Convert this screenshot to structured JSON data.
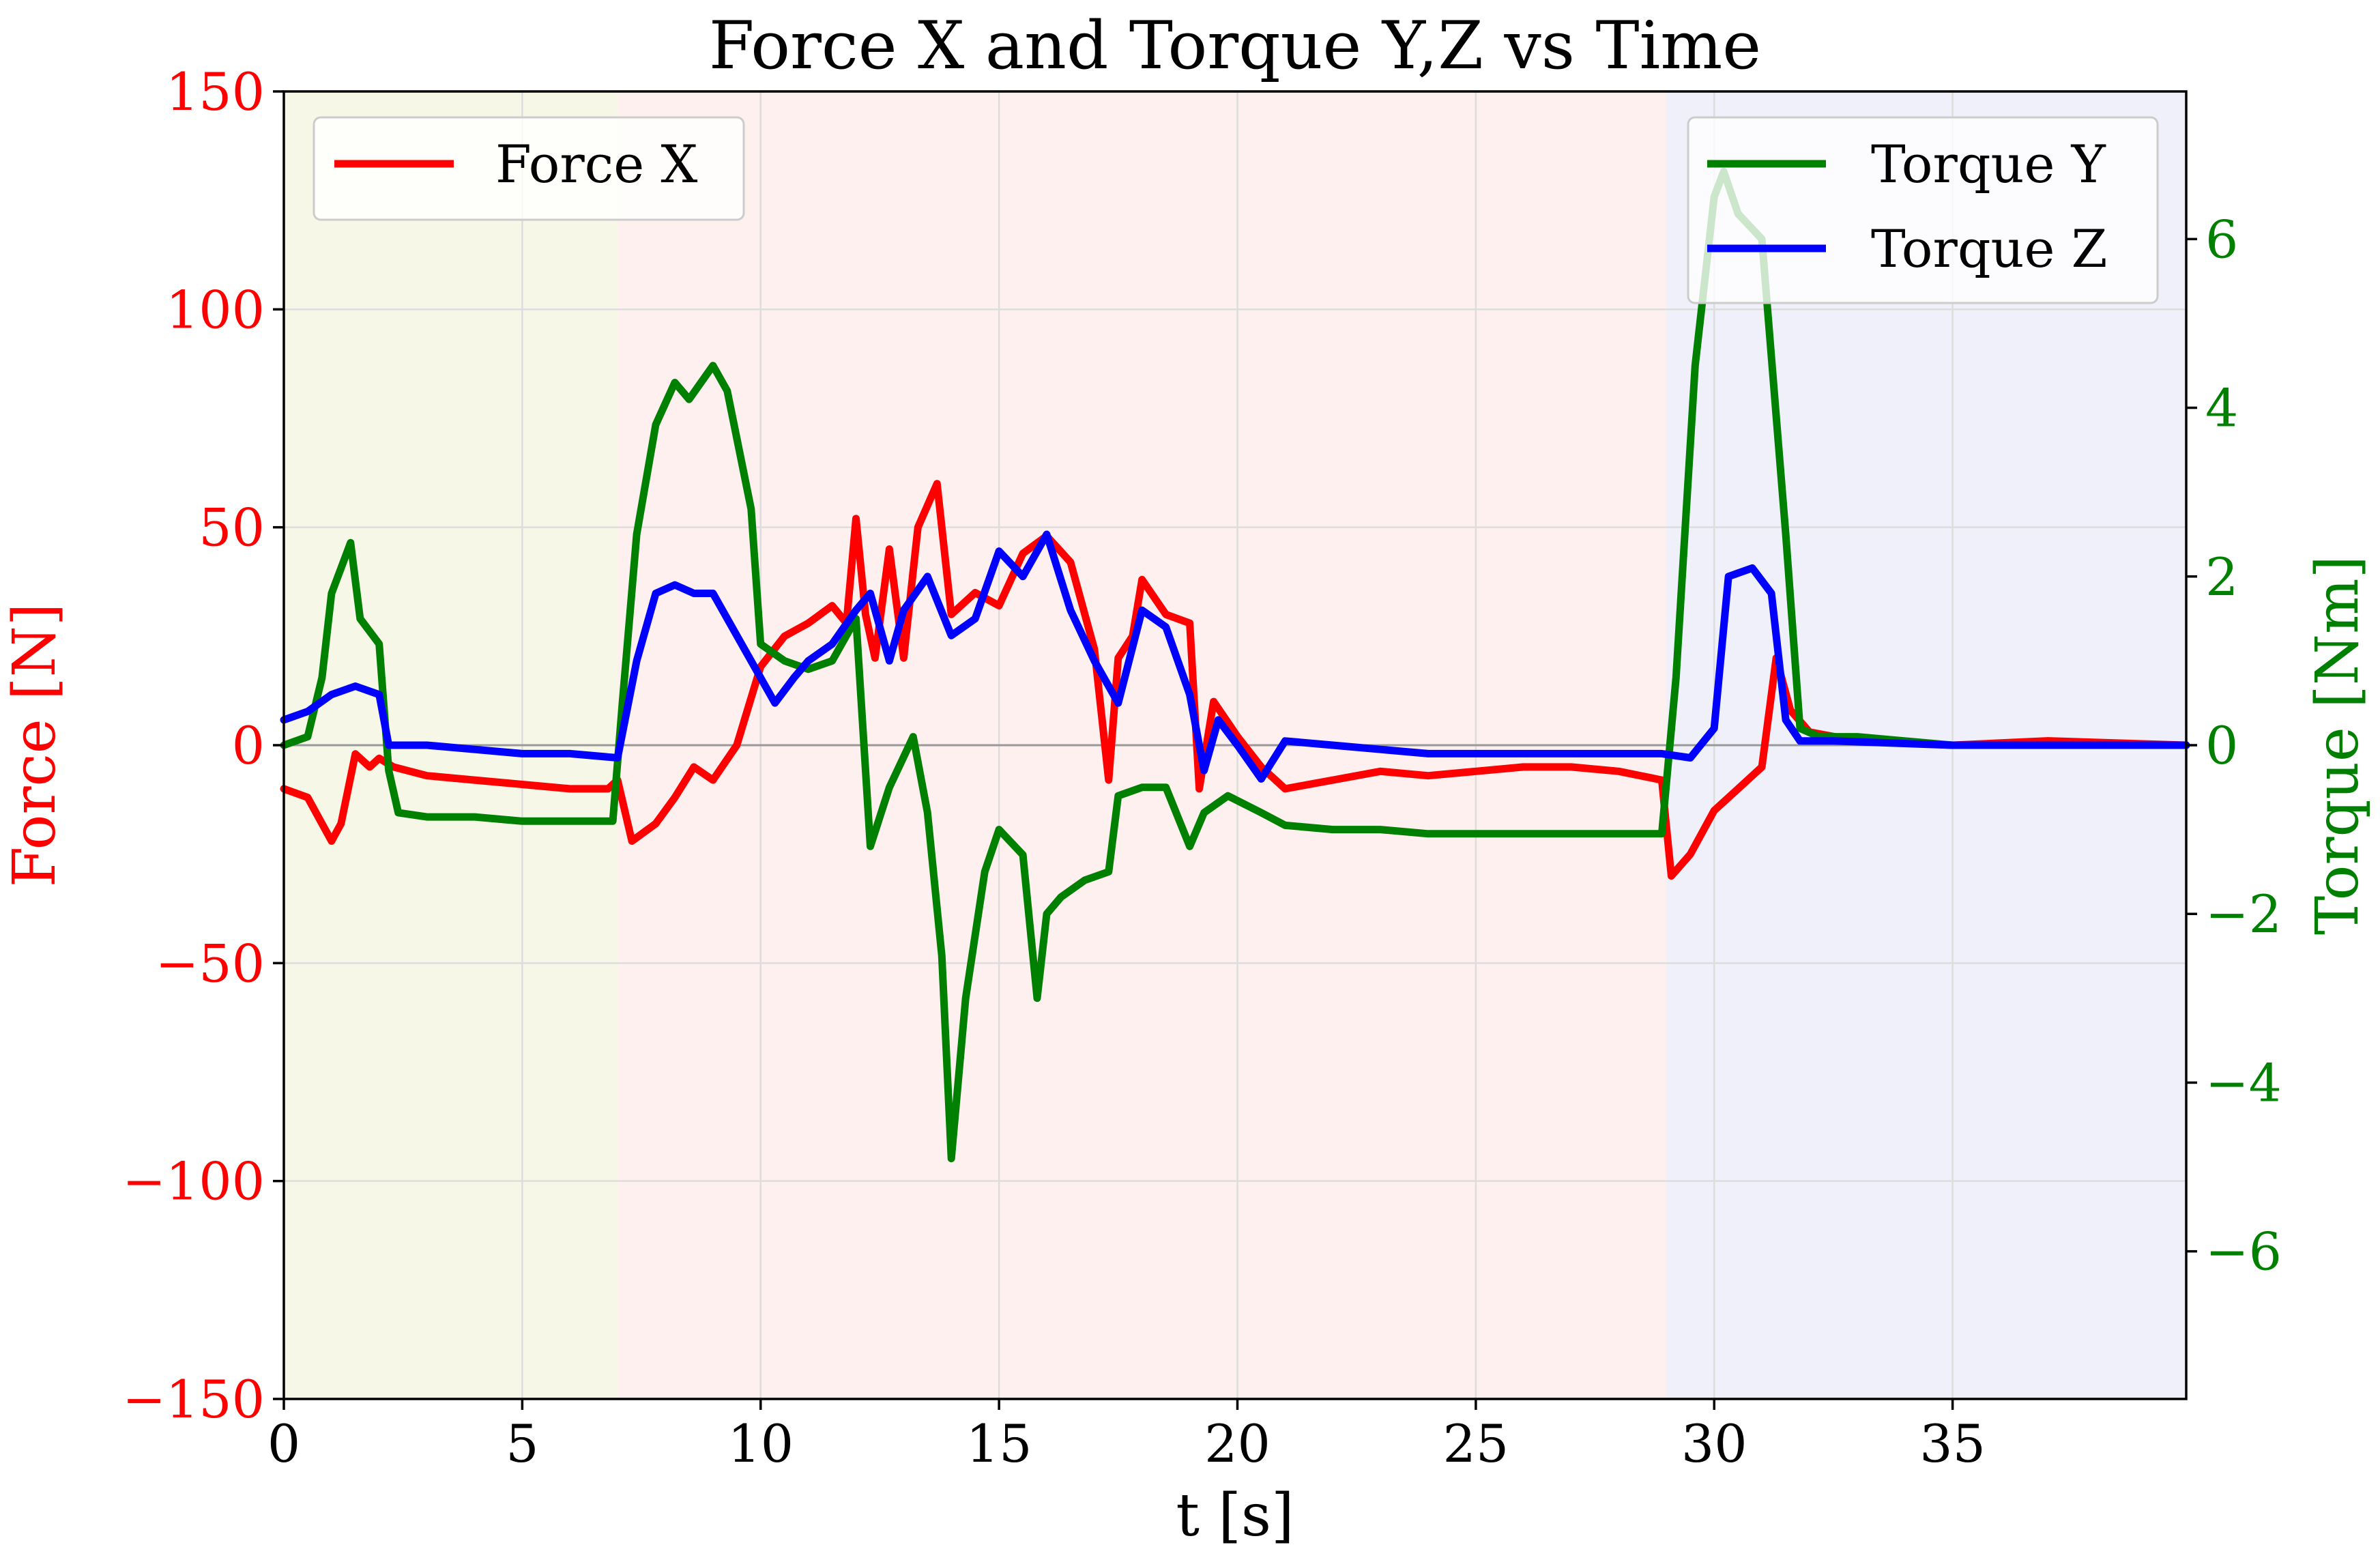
{
  "chart_data": {
    "type": "line",
    "title": "Force X and Torque Y,Z vs Time",
    "xlabel": "t [s]",
    "ylabel": "Force [N]",
    "y2label": "Torque [Nm]",
    "xlim": [
      0,
      39.9
    ],
    "ylim": [
      -150,
      150
    ],
    "y2lim": [
      -7.75,
      7.75
    ],
    "xticks": [
      0,
      5,
      10,
      15,
      20,
      25,
      30,
      35
    ],
    "yticks": [
      -150,
      -100,
      -50,
      0,
      50,
      100,
      150
    ],
    "y2ticks": [
      -6,
      -4,
      -2,
      0,
      2,
      4,
      6
    ],
    "tick_labels": {
      "x": [
        "0",
        "5",
        "10",
        "15",
        "20",
        "25",
        "30",
        "35"
      ],
      "y": [
        "−150",
        "−100",
        "−50",
        "0",
        "50",
        "100",
        "150"
      ],
      "y2": [
        "−6",
        "−4",
        "−2",
        "0",
        "2",
        "4",
        "6"
      ]
    },
    "grid": true,
    "regions": [
      {
        "x_start": 0,
        "x_end": 7,
        "color": "#f7f7e8"
      },
      {
        "x_start": 7,
        "x_end": 29,
        "color": "#fef0ee"
      },
      {
        "x_start": 29,
        "x_end": 39.9,
        "color": "#eff0fa"
      }
    ],
    "legends": [
      {
        "placement": "top-left",
        "entries": [
          "Force X"
        ]
      },
      {
        "placement": "top-right",
        "entries": [
          "Torque Y",
          "Torque Z"
        ]
      }
    ],
    "series": [
      {
        "name": "Force X",
        "axis": "left",
        "color": "#ff0000",
        "x": [
          0,
          0.5,
          1.0,
          1.2,
          1.5,
          1.8,
          2.0,
          2.3,
          3,
          4,
          5,
          6,
          6.8,
          7.0,
          7.3,
          7.8,
          8.2,
          8.6,
          9.0,
          9.5,
          10.0,
          10.5,
          11.0,
          11.5,
          11.8,
          12.0,
          12.2,
          12.4,
          12.7,
          13.0,
          13.3,
          13.7,
          14.0,
          14.5,
          15.0,
          15.5,
          16.0,
          16.5,
          17.0,
          17.3,
          17.5,
          17.8,
          18.0,
          18.5,
          19.0,
          19.2,
          19.5,
          20.0,
          20.5,
          21.0,
          22,
          23,
          24,
          25,
          26,
          27,
          28,
          28.9,
          29.1,
          29.5,
          30.0,
          30.5,
          31.0,
          31.3,
          31.6,
          32.0,
          33,
          35,
          37,
          39.9
        ],
        "values": [
          -10,
          -12,
          -22,
          -18,
          -2,
          -5,
          -3,
          -5,
          -7,
          -8,
          -9,
          -10,
          -10,
          -8,
          -22,
          -18,
          -12,
          -5,
          -8,
          0,
          18,
          25,
          28,
          32,
          28,
          52,
          30,
          20,
          45,
          20,
          50,
          60,
          30,
          35,
          32,
          44,
          48,
          42,
          22,
          -8,
          20,
          25,
          38,
          30,
          28,
          -10,
          10,
          2,
          -5,
          -10,
          -8,
          -6,
          -7,
          -6,
          -5,
          -5,
          -6,
          -8,
          -30,
          -25,
          -15,
          -10,
          -5,
          20,
          8,
          3,
          1,
          0,
          1,
          0
        ]
      },
      {
        "name": "Torque Y",
        "axis": "right",
        "color": "#008000",
        "x": [
          0,
          0.5,
          0.8,
          1.0,
          1.4,
          1.6,
          2.0,
          2.2,
          2.4,
          3,
          4,
          5,
          6,
          6.9,
          7.1,
          7.4,
          7.8,
          8.2,
          8.5,
          9.0,
          9.3,
          9.8,
          10.0,
          10.5,
          11.0,
          11.5,
          12.0,
          12.3,
          12.7,
          13.2,
          13.5,
          13.8,
          14.0,
          14.3,
          14.7,
          15.0,
          15.5,
          15.8,
          16.0,
          16.3,
          16.8,
          17.3,
          17.5,
          18.0,
          18.5,
          19.0,
          19.3,
          19.8,
          20.5,
          21.0,
          22,
          23,
          24,
          25,
          26,
          27,
          28,
          28.9,
          29.2,
          29.6,
          30.0,
          30.2,
          30.5,
          31.0,
          31.5,
          31.8,
          32.2,
          33,
          35,
          37,
          39.9
        ],
        "values": [
          0,
          0.1,
          0.8,
          1.8,
          2.4,
          1.5,
          1.2,
          -0.3,
          -0.8,
          -0.85,
          -0.85,
          -0.9,
          -0.9,
          -0.9,
          0.5,
          2.5,
          3.8,
          4.3,
          4.1,
          4.5,
          4.2,
          2.8,
          1.2,
          1.0,
          0.9,
          1.0,
          1.5,
          -1.2,
          -0.5,
          0.1,
          -0.8,
          -2.5,
          -4.9,
          -3.0,
          -1.5,
          -1.0,
          -1.3,
          -3.0,
          -2.0,
          -1.8,
          -1.6,
          -1.5,
          -0.6,
          -0.5,
          -0.5,
          -1.2,
          -0.8,
          -0.6,
          -0.8,
          -0.95,
          -1.0,
          -1.0,
          -1.05,
          -1.05,
          -1.05,
          -1.05,
          -1.05,
          -1.05,
          0.8,
          4.5,
          6.5,
          6.8,
          6.3,
          6.0,
          2.5,
          0.2,
          0.1,
          0.1,
          0,
          0,
          0
        ]
      },
      {
        "name": "Torque Z",
        "axis": "right",
        "color": "#0000ff",
        "x": [
          0,
          0.5,
          1.0,
          1.5,
          2.0,
          2.2,
          3,
          4,
          5,
          6,
          7.0,
          7.4,
          7.8,
          8.2,
          8.6,
          9.0,
          9.5,
          10.0,
          10.3,
          10.7,
          11.0,
          11.5,
          12.0,
          12.3,
          12.7,
          13.0,
          13.5,
          14.0,
          14.5,
          15.0,
          15.5,
          16.0,
          16.5,
          17.0,
          17.5,
          18.0,
          18.5,
          19.0,
          19.3,
          19.6,
          20.0,
          20.5,
          21.0,
          22,
          23,
          24,
          25,
          26,
          27,
          28,
          28.9,
          29.5,
          30.0,
          30.3,
          30.8,
          31.2,
          31.5,
          31.8,
          32.5,
          35,
          37,
          39.9
        ],
        "values": [
          0.3,
          0.4,
          0.6,
          0.7,
          0.6,
          0,
          0,
          -0.05,
          -0.1,
          -0.1,
          -0.15,
          1.0,
          1.8,
          1.9,
          1.8,
          1.8,
          1.3,
          0.8,
          0.5,
          0.8,
          1.0,
          1.2,
          1.6,
          1.8,
          1.0,
          1.6,
          2.0,
          1.3,
          1.5,
          2.3,
          2.0,
          2.5,
          1.6,
          1.0,
          0.5,
          1.6,
          1.4,
          0.6,
          -0.3,
          0.3,
          0.0,
          -0.4,
          0.05,
          0,
          -0.05,
          -0.1,
          -0.1,
          -0.1,
          -0.1,
          -0.1,
          -0.1,
          -0.15,
          0.2,
          2.0,
          2.1,
          1.8,
          0.3,
          0.05,
          0.05,
          0,
          0,
          0
        ]
      }
    ]
  }
}
